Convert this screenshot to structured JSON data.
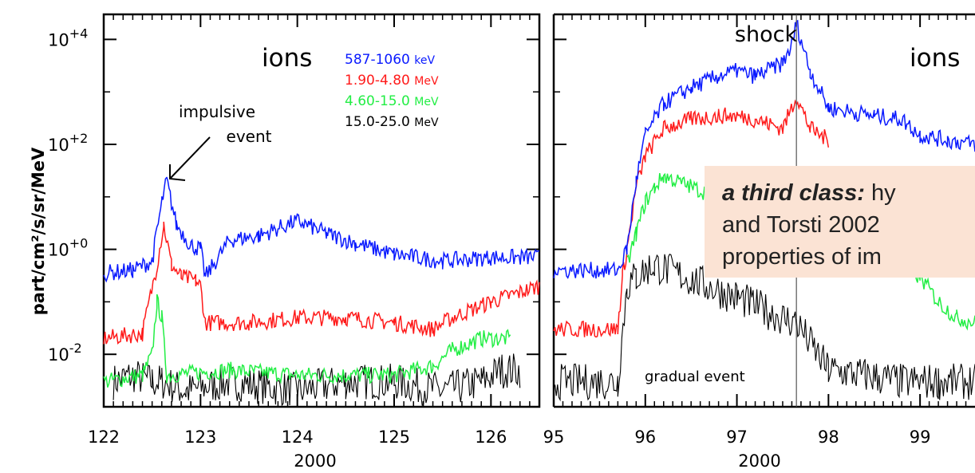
{
  "ylabel": "part/cm²/s/sr/MeV",
  "chart_data": [
    {
      "type": "line",
      "panel": "left",
      "xlabel": "2000",
      "x_ticks": [
        "122",
        "123",
        "124",
        "125",
        "126"
      ],
      "xlim": [
        122.0,
        126.5
      ],
      "yscale": "log",
      "ylim": [
        0.001,
        30000
      ],
      "y_ticks": [
        {
          "value": 10000,
          "base": "10",
          "exp": "+4"
        },
        {
          "value": 100,
          "base": "10",
          "exp": "+2"
        },
        {
          "value": 1,
          "base": "10",
          "exp": "+0"
        },
        {
          "value": 0.01,
          "base": "10",
          "exp": "-2"
        }
      ],
      "title_label": "ions",
      "annotation": "impulsive event",
      "series": [
        {
          "name": "587-1060 keV",
          "color": "#0a1aff",
          "x": [
            122.0,
            122.3,
            122.5,
            122.6,
            122.65,
            122.75,
            122.9,
            123.0,
            123.05,
            123.3,
            123.6,
            124.0,
            124.3,
            124.6,
            125.0,
            125.5,
            126.0,
            126.5
          ],
          "y": [
            0.35,
            0.4,
            0.6,
            8,
            20,
            3,
            1.2,
            1.0,
            0.3,
            1.5,
            1.8,
            3.5,
            2,
            1.3,
            0.8,
            0.6,
            0.7,
            0.7
          ]
        },
        {
          "name": "1.90-4.80 MeV",
          "color": "#ff1a1a",
          "x": [
            122.0,
            122.4,
            122.55,
            122.62,
            122.7,
            122.8,
            122.95,
            123.0,
            123.05,
            123.5,
            124.0,
            124.5,
            125.0,
            125.4,
            125.6,
            126.0,
            126.5
          ],
          "y": [
            0.02,
            0.025,
            0.5,
            3,
            0.5,
            0.3,
            0.25,
            0.2,
            0.04,
            0.04,
            0.05,
            0.05,
            0.04,
            0.03,
            0.05,
            0.1,
            0.2
          ]
        },
        {
          "name": "4.60-15.0 MeV",
          "color": "#22ee44",
          "x": [
            122.0,
            122.4,
            122.5,
            122.55,
            122.6,
            122.65,
            123.3,
            124.0,
            124.5,
            125.0,
            125.4,
            125.6,
            125.9,
            126.2
          ],
          "y": [
            0.003,
            0.004,
            0.01,
            0.1,
            0.05,
            0.004,
            0.005,
            0.004,
            0.004,
            0.004,
            0.006,
            0.012,
            0.02,
            0.02
          ]
        },
        {
          "name": "15.0-25.0 MeV",
          "color": "#000000",
          "x": [
            122.1,
            122.3,
            122.5,
            122.6,
            122.85,
            123.3,
            124.0,
            124.5,
            125.0,
            125.5,
            125.9,
            126.1,
            126.3
          ],
          "y": [
            0.003,
            0.004,
            0.003,
            0.003,
            0.002,
            0.003,
            0.002,
            0.003,
            0.003,
            0.002,
            0.003,
            0.005,
            0.005
          ]
        }
      ]
    },
    {
      "type": "line",
      "panel": "right",
      "xlabel": "2000",
      "x_ticks": [
        "95",
        "96",
        "97",
        "98",
        "99"
      ],
      "xlim": [
        95.0,
        99.6
      ],
      "yscale": "log",
      "ylim": [
        0.001,
        30000
      ],
      "title_label": "ions",
      "annotations": [
        "shock",
        "gradual event"
      ],
      "shock_x": 97.65,
      "series": [
        {
          "name": "587-1060 keV",
          "color": "#0a1aff",
          "x": [
            95.0,
            95.7,
            95.8,
            95.9,
            96.0,
            96.2,
            96.5,
            96.8,
            97.0,
            97.2,
            97.5,
            97.6,
            97.65,
            97.8,
            98.0,
            98.3,
            98.5,
            98.8,
            99.0,
            99.3,
            99.6
          ],
          "y": [
            0.4,
            0.4,
            1,
            20,
            150,
            600,
            1200,
            2000,
            2500,
            2000,
            3500,
            8000,
            20000,
            2500,
            500,
            400,
            350,
            300,
            150,
            120,
            100
          ]
        },
        {
          "name": "1.90-4.80 MeV",
          "color": "#ff1a1a",
          "x": [
            95.0,
            95.7,
            95.75,
            95.8,
            95.9,
            96.0,
            96.2,
            96.5,
            96.8,
            97.0,
            97.2,
            97.5,
            97.65,
            97.8,
            98.0
          ],
          "y": [
            0.03,
            0.03,
            0.3,
            1,
            15,
            60,
            200,
            300,
            350,
            350,
            300,
            200,
            800,
            200,
            120
          ]
        },
        {
          "name": "4.60-15.0 MeV",
          "color": "#22ee44",
          "x": [
            95.8,
            95.9,
            96.0,
            96.1,
            96.2,
            99.0,
            99.2,
            99.4,
            99.6
          ],
          "y": [
            0.5,
            2,
            8,
            15,
            25,
            0.3,
            0.1,
            0.05,
            0.04
          ]
        },
        {
          "name": "15.0-25.0 MeV",
          "color": "#000000",
          "x": [
            95.0,
            95.5,
            95.7,
            95.8,
            95.9,
            96.0,
            96.1,
            97.0,
            97.3,
            97.5,
            97.65,
            98.0,
            98.4,
            98.8,
            99.2,
            99.6
          ],
          "y": [
            0.003,
            0.003,
            0.003,
            0.2,
            0.3,
            0.4,
            0.5,
            0.12,
            0.07,
            0.05,
            0.04,
            0.005,
            0.004,
            0.003,
            0.003,
            0.003
          ]
        }
      ]
    }
  ],
  "overlay_box": {
    "em": "a third class:",
    "line1_rest": " hy",
    "line2": "and Torsti 2002",
    "line3": "properties of im"
  },
  "colors": {
    "blue": "#0a1aff",
    "red": "#ff1a1a",
    "green": "#22ee44",
    "black": "#000000",
    "box_bg": "#fbe3d4"
  }
}
